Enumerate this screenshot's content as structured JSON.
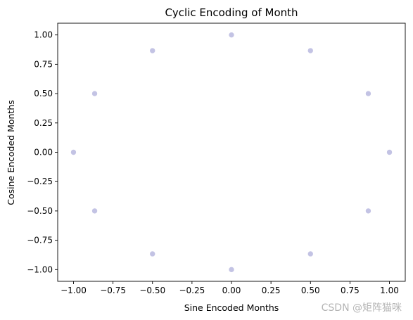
{
  "chart_data": {
    "type": "scatter",
    "title": "Cyclic Encoding of Month",
    "xlabel": "Sine Encoded Months",
    "ylabel": "Cosine Encoded Months",
    "xlim": [
      -1.1,
      1.1
    ],
    "ylim": [
      -1.1,
      1.1
    ],
    "xticks": [
      -1.0,
      -0.75,
      -0.5,
      -0.25,
      0.0,
      0.25,
      0.5,
      0.75,
      1.0
    ],
    "yticks": [
      -1.0,
      -0.75,
      -0.5,
      -0.25,
      0.0,
      0.25,
      0.5,
      0.75,
      1.0
    ],
    "xtick_labels": [
      "−1.00",
      "−0.75",
      "−0.50",
      "−0.25",
      "0.00",
      "0.25",
      "0.50",
      "0.75",
      "1.00"
    ],
    "ytick_labels": [
      "−1.00",
      "−0.75",
      "−0.50",
      "−0.25",
      "0.00",
      "0.25",
      "0.50",
      "0.75",
      "1.00"
    ],
    "grid": false,
    "point_color": "#c3c3e4",
    "points": [
      {
        "x": 0.0,
        "y": 1.0
      },
      {
        "x": 0.5,
        "y": 0.866
      },
      {
        "x": 0.866,
        "y": 0.5
      },
      {
        "x": 1.0,
        "y": 0.0
      },
      {
        "x": 0.866,
        "y": -0.5
      },
      {
        "x": 0.5,
        "y": -0.866
      },
      {
        "x": 0.0,
        "y": -1.0
      },
      {
        "x": -0.5,
        "y": -0.866
      },
      {
        "x": -0.866,
        "y": -0.5
      },
      {
        "x": -1.0,
        "y": 0.0
      },
      {
        "x": -0.866,
        "y": 0.5
      },
      {
        "x": -0.5,
        "y": 0.866
      }
    ]
  },
  "watermark": "CSDN @矩阵猫咪"
}
